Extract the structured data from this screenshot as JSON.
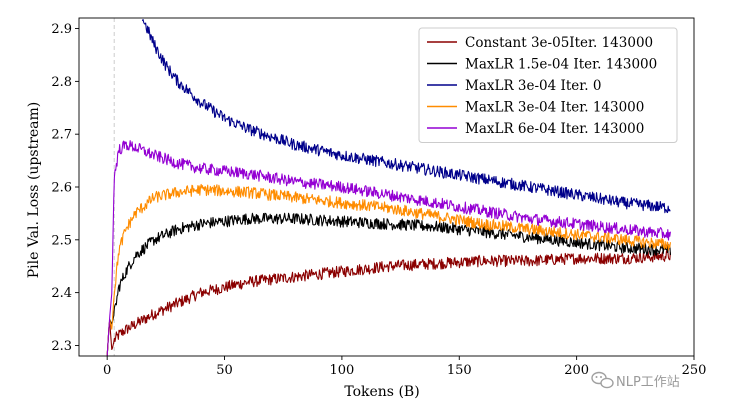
{
  "chart_data": {
    "type": "line",
    "title": "",
    "xlabel": "Tokens (B)",
    "ylabel": "Pile Val. Loss (upstream)",
    "xlim": [
      -12,
      250
    ],
    "ylim": [
      2.28,
      2.92
    ],
    "xticks": [
      0,
      50,
      100,
      150,
      200,
      250
    ],
    "yticks": [
      2.3,
      2.4,
      2.5,
      2.6,
      2.7,
      2.8,
      2.9
    ],
    "grid": false,
    "legend_position": "top-right",
    "reference_line_x": 3,
    "series": [
      {
        "name": "Constant 3e-05Iter. 143000",
        "color": "#8b0000",
        "x": [
          0,
          1,
          2,
          3,
          5,
          8,
          12,
          20,
          30,
          40,
          60,
          80,
          100,
          120,
          140,
          160,
          180,
          200,
          220,
          240
        ],
        "y": [
          2.28,
          2.35,
          2.29,
          2.31,
          2.32,
          2.33,
          2.34,
          2.36,
          2.38,
          2.4,
          2.42,
          2.43,
          2.44,
          2.45,
          2.455,
          2.46,
          2.46,
          2.465,
          2.465,
          2.47
        ]
      },
      {
        "name": "MaxLR 1.5e-04 Iter. 143000",
        "color": "#000000",
        "x": [
          0,
          1,
          2,
          3,
          5,
          8,
          12,
          20,
          30,
          40,
          60,
          80,
          100,
          120,
          140,
          160,
          180,
          200,
          220,
          240
        ],
        "y": [
          2.28,
          2.35,
          2.34,
          2.36,
          2.41,
          2.44,
          2.47,
          2.5,
          2.52,
          2.53,
          2.54,
          2.54,
          2.535,
          2.53,
          2.525,
          2.515,
          2.505,
          2.495,
          2.485,
          2.48
        ]
      },
      {
        "name": "MaxLR 3e-04 Iter. 0",
        "color": "#00008b",
        "x": [
          15,
          20,
          25,
          30,
          40,
          50,
          60,
          80,
          100,
          120,
          140,
          160,
          180,
          200,
          220,
          240
        ],
        "y": [
          2.92,
          2.87,
          2.83,
          2.8,
          2.76,
          2.73,
          2.71,
          2.68,
          2.66,
          2.645,
          2.63,
          2.615,
          2.6,
          2.585,
          2.57,
          2.56
        ]
      },
      {
        "name": "MaxLR 3e-04 Iter. 143000",
        "color": "#ff8c00",
        "x": [
          0,
          1,
          2,
          3,
          5,
          8,
          12,
          20,
          30,
          40,
          60,
          80,
          100,
          120,
          140,
          160,
          180,
          200,
          220,
          240
        ],
        "y": [
          2.28,
          2.35,
          2.33,
          2.4,
          2.48,
          2.52,
          2.55,
          2.58,
          2.59,
          2.595,
          2.59,
          2.58,
          2.57,
          2.56,
          2.545,
          2.53,
          2.52,
          2.51,
          2.5,
          2.49
        ]
      },
      {
        "name": "MaxLR 6e-04 Iter. 143000",
        "color": "#9400d3",
        "x": [
          0,
          1,
          2,
          3,
          5,
          8,
          12,
          20,
          30,
          40,
          60,
          80,
          100,
          120,
          140,
          160,
          180,
          200,
          220,
          240
        ],
        "y": [
          2.28,
          2.35,
          2.4,
          2.62,
          2.67,
          2.68,
          2.675,
          2.66,
          2.645,
          2.635,
          2.625,
          2.61,
          2.6,
          2.585,
          2.57,
          2.555,
          2.54,
          2.53,
          2.52,
          2.51
        ]
      }
    ]
  },
  "watermark": {
    "text": "NLP工作站",
    "icon": "wechat-icon"
  }
}
